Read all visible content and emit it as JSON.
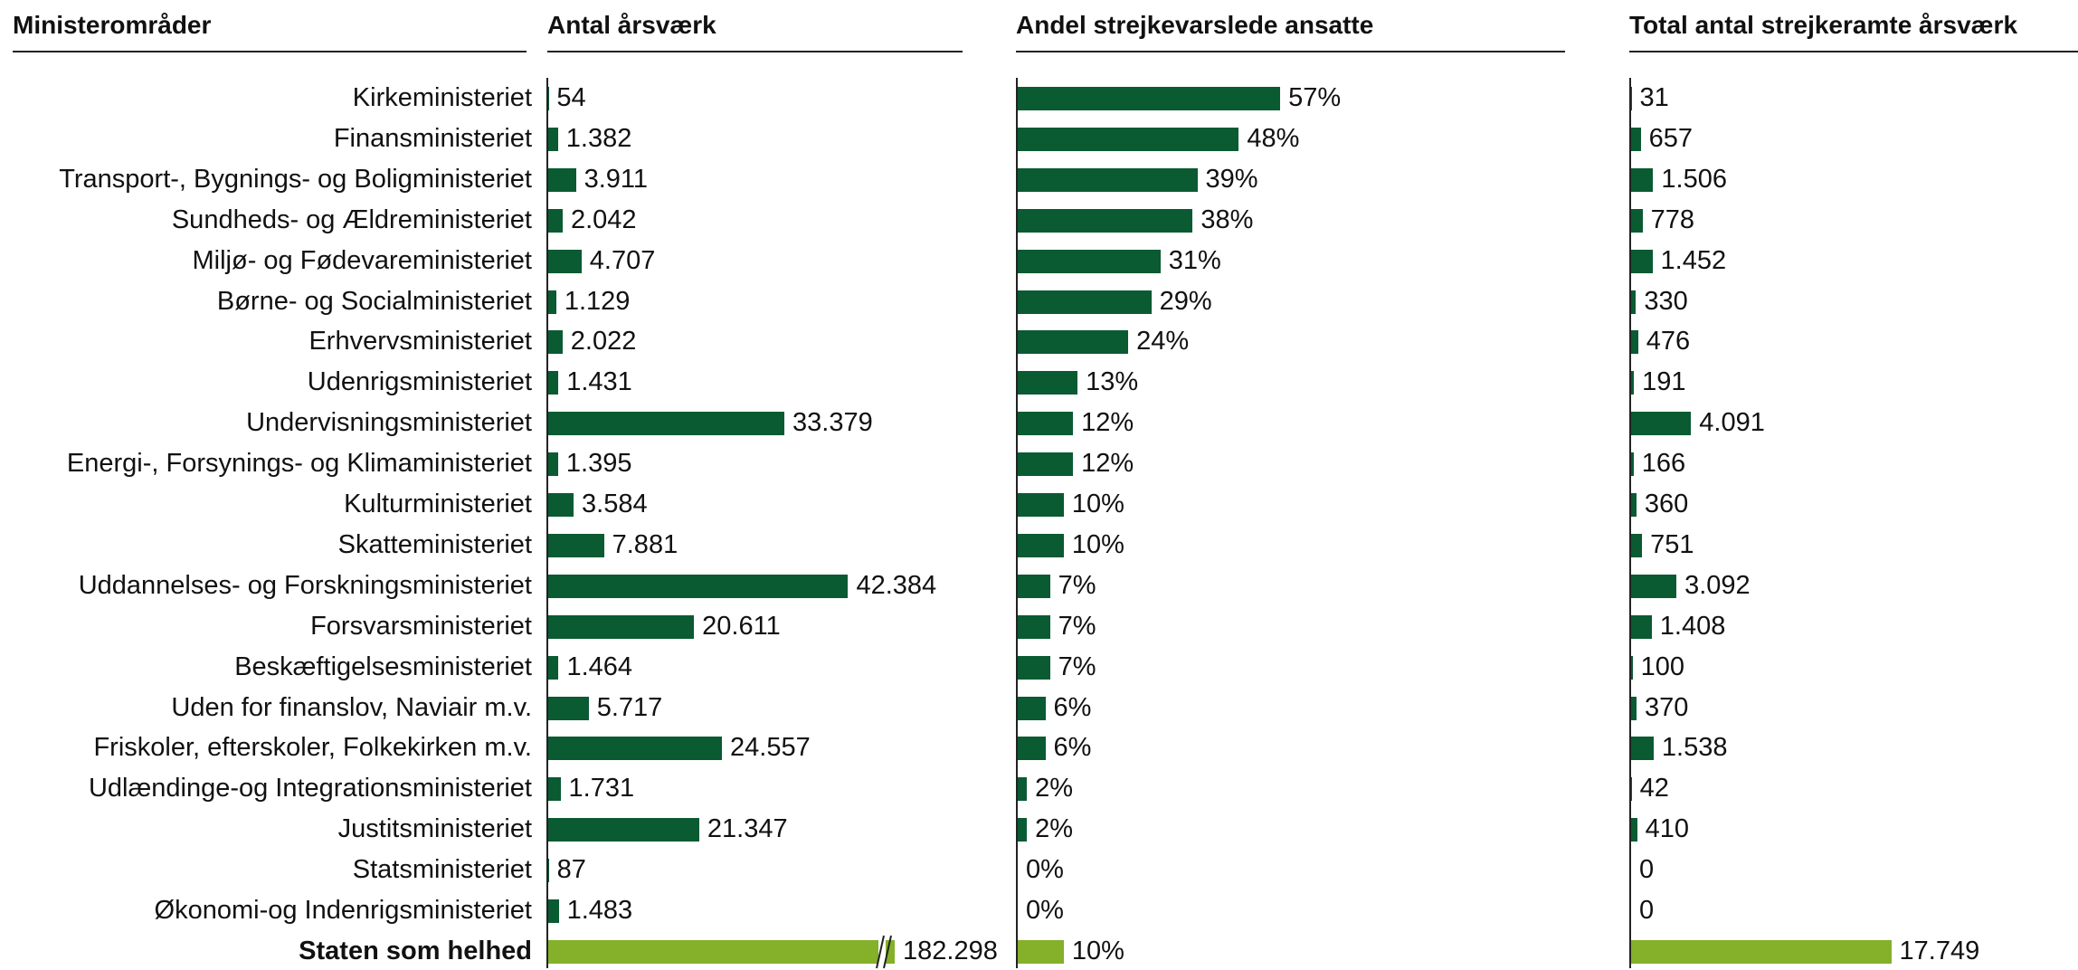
{
  "headers": {
    "col1": "Ministerområder",
    "col2": "Antal årsværk",
    "col3": "Andel strejkevarslede ansatte",
    "col4": "Total antal strejkeramte årsværk"
  },
  "colors": {
    "bar": "#0a5a32",
    "total_bar": "#84b02a"
  },
  "chart_data": {
    "type": "bar",
    "orientation": "horizontal",
    "categories": [
      "Kirkeministeriet",
      "Finansministeriet",
      "Transport-, Bygnings- og Boligministeriet",
      "Sundheds- og Ældreministeriet",
      "Miljø- og Fødevareministeriet",
      "Børne- og Socialministeriet",
      "Erhvervsministeriet",
      "Udenrigsministeriet",
      "Undervisningsministeriet",
      "Energi-, Forsynings- og Klimaministeriet",
      "Kulturministeriet",
      "Skatteministeriet",
      "Uddannelses- og Forskningsministeriet",
      "Forsvarsministeriet",
      "Beskæftigelsesministeriet",
      "Uden for finanslov, Naviair m.v.",
      "Friskoler, efterskoler, Folkekirken m.v.",
      "Udlændinge-og Integrationsministeriet",
      "Justitsministeriet",
      "Statsministeriet",
      "Økonomi-og Indenrigsministeriet",
      "Staten som helhed"
    ],
    "series": [
      {
        "name": "Antal årsværk",
        "values": [
          54,
          1382,
          3911,
          2042,
          4707,
          1129,
          2022,
          1431,
          33379,
          1395,
          3584,
          7881,
          42384,
          20611,
          1464,
          5717,
          24557,
          1731,
          21347,
          87,
          1483,
          182298
        ],
        "labels": [
          "54",
          "1.382",
          "3.911",
          "2.042",
          "4.707",
          "1.129",
          "2.022",
          "1.431",
          "33.379",
          "1.395",
          "3.584",
          "7.881",
          "42.384",
          "20.611",
          "1.464",
          "5.717",
          "24.557",
          "1.731",
          "21.347",
          "87",
          "1.483",
          "182.298"
        ],
        "axis_break_on_total": true
      },
      {
        "name": "Andel strejkevarslede ansatte",
        "values": [
          57,
          48,
          39,
          38,
          31,
          29,
          24,
          13,
          12,
          12,
          10,
          10,
          7,
          7,
          7,
          6,
          6,
          2,
          2,
          0,
          0,
          10
        ],
        "labels": [
          "57%",
          "48%",
          "39%",
          "38%",
          "31%",
          "29%",
          "24%",
          "13%",
          "12%",
          "12%",
          "10%",
          "10%",
          "7%",
          "7%",
          "7%",
          "6%",
          "6%",
          "2%",
          "2%",
          "0%",
          "0%",
          "10%"
        ]
      },
      {
        "name": "Total antal strejkeramte årsværk",
        "values": [
          31,
          657,
          1506,
          778,
          1452,
          330,
          476,
          191,
          4091,
          166,
          360,
          751,
          3092,
          1408,
          100,
          370,
          1538,
          42,
          410,
          0,
          0,
          17749
        ],
        "labels": [
          "31",
          "657",
          "1.506",
          "778",
          "1.452",
          "330",
          "476",
          "191",
          "4.091",
          "166",
          "360",
          "751",
          "3.092",
          "1.408",
          "100",
          "370",
          "1.538",
          "42",
          "410",
          "0",
          "0",
          "17.749"
        ]
      }
    ]
  }
}
